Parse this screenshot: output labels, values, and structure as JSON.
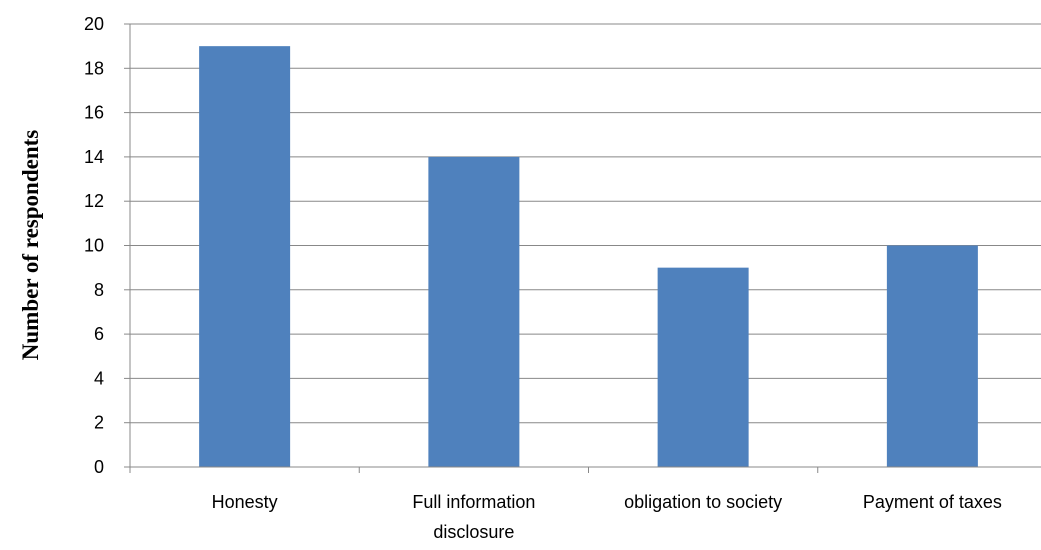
{
  "chart_data": {
    "type": "bar",
    "categories": [
      "Honesty",
      "Full information disclosure",
      "obligation to society",
      "Payment of taxes"
    ],
    "category_lines": [
      [
        "Honesty"
      ],
      [
        "Full information",
        "disclosure"
      ],
      [
        "obligation to society"
      ],
      [
        "Payment of taxes"
      ]
    ],
    "values": [
      19,
      14,
      9,
      10
    ],
    "title": "",
    "xlabel": "",
    "ylabel": "Number of respondents",
    "ylim": [
      0,
      20
    ],
    "yticks": [
      0,
      2,
      4,
      6,
      8,
      10,
      12,
      14,
      16,
      18,
      20
    ],
    "grid": true,
    "legend": "none",
    "colors": {
      "bar": "#4f81bd",
      "grid": "#888888",
      "axis": "#888888"
    }
  }
}
